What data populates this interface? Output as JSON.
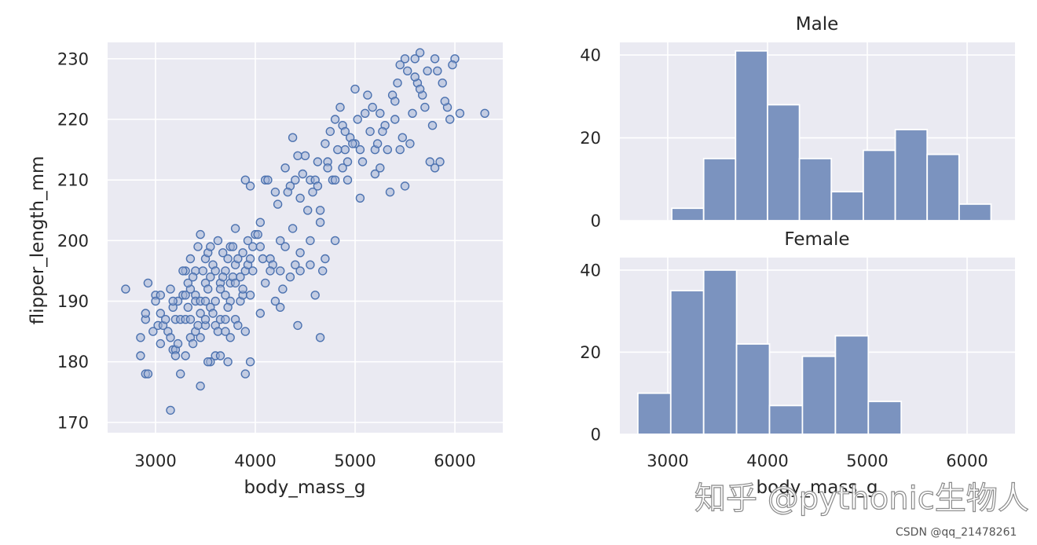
{
  "colors": {
    "panel_bg": "#eaeaf2",
    "grid": "#ffffff",
    "point_fill": "#a3b3d6",
    "point_edge": "#4c72b0",
    "bar_fill": "#7b93bf",
    "bar_edge": "#ffffff",
    "text": "#262626"
  },
  "watermark": {
    "main": "知乎 @pythonic生物人",
    "sub": "CSDN @qq_21478261"
  },
  "chart_data": [
    {
      "type": "scatter",
      "title": "",
      "xlabel": "body_mass_g",
      "ylabel": "flipper_length_mm",
      "xlim": [
        2520,
        6480
      ],
      "ylim": [
        168.3,
        232.7
      ],
      "xticks": [
        3000,
        4000,
        5000,
        6000
      ],
      "yticks": [
        170,
        180,
        190,
        200,
        210,
        220,
        230
      ],
      "grid": true,
      "points": [
        [
          2700,
          192
        ],
        [
          2850,
          184
        ],
        [
          2850,
          181
        ],
        [
          2900,
          187
        ],
        [
          2900,
          188
        ],
        [
          2900,
          178
        ],
        [
          2925,
          193
        ],
        [
          2975,
          185
        ],
        [
          3000,
          191
        ],
        [
          3000,
          190
        ],
        [
          3025,
          186
        ],
        [
          3050,
          188
        ],
        [
          3050,
          183
        ],
        [
          3075,
          186
        ],
        [
          3100,
          187
        ],
        [
          3125,
          185
        ],
        [
          3150,
          192
        ],
        [
          3150,
          172
        ],
        [
          3175,
          182
        ],
        [
          3175,
          189
        ],
        [
          3200,
          187
        ],
        [
          3200,
          182
        ],
        [
          3200,
          181
        ],
        [
          3225,
          190
        ],
        [
          3250,
          187
        ],
        [
          3250,
          178
        ],
        [
          3275,
          191
        ],
        [
          3300,
          191
        ],
        [
          3300,
          195
        ],
        [
          3300,
          187
        ],
        [
          3300,
          181
        ],
        [
          3325,
          189
        ],
        [
          3350,
          192
        ],
        [
          3350,
          187
        ],
        [
          3350,
          184
        ],
        [
          3400,
          191
        ],
        [
          3400,
          195
        ],
        [
          3400,
          185
        ],
        [
          3400,
          190
        ],
        [
          3425,
          186
        ],
        [
          3450,
          188
        ],
        [
          3450,
          190
        ],
        [
          3450,
          184
        ],
        [
          3450,
          176
        ],
        [
          3500,
          193
        ],
        [
          3500,
          197
        ],
        [
          3500,
          190
        ],
        [
          3500,
          186
        ],
        [
          3500,
          187
        ],
        [
          3525,
          198
        ],
        [
          3550,
          194
        ],
        [
          3550,
          189
        ],
        [
          3550,
          180
        ],
        [
          3575,
          196
        ],
        [
          3600,
          195
        ],
        [
          3600,
          190
        ],
        [
          3600,
          186
        ],
        [
          3600,
          181
        ],
        [
          3625,
          185
        ],
        [
          3650,
          193
        ],
        [
          3650,
          187
        ],
        [
          3650,
          181
        ],
        [
          3675,
          198
        ],
        [
          3700,
          195
        ],
        [
          3700,
          191
        ],
        [
          3700,
          187
        ],
        [
          3700,
          185
        ],
        [
          3725,
          197
        ],
        [
          3750,
          190
        ],
        [
          3750,
          193
        ],
        [
          3750,
          199
        ],
        [
          3775,
          194
        ],
        [
          3800,
          193
        ],
        [
          3800,
          196
        ],
        [
          3800,
          202
        ],
        [
          3800,
          187
        ],
        [
          3825,
          186
        ],
        [
          3850,
          190
        ],
        [
          3875,
          191
        ],
        [
          3900,
          195
        ],
        [
          3900,
          210
        ],
        [
          3900,
          185
        ],
        [
          3900,
          178
        ],
        [
          3925,
          200
        ],
        [
          3950,
          209
        ],
        [
          3950,
          191
        ],
        [
          3950,
          180
        ],
        [
          3975,
          199
        ],
        [
          4000,
          201
        ],
        [
          4050,
          203
        ],
        [
          4050,
          188
        ],
        [
          4075,
          197
        ],
        [
          4100,
          210
        ],
        [
          4150,
          197
        ],
        [
          4200,
          190
        ],
        [
          4200,
          208
        ],
        [
          4250,
          195
        ],
        [
          4250,
          189
        ],
        [
          4275,
          192
        ],
        [
          4300,
          212
        ],
        [
          4300,
          199
        ],
        [
          4350,
          209
        ],
        [
          4375,
          217
        ],
        [
          4400,
          210
        ],
        [
          4400,
          196
        ],
        [
          4450,
          195
        ],
        [
          4450,
          207
        ],
        [
          4500,
          214
        ],
        [
          4550,
          210
        ],
        [
          4600,
          191
        ],
        [
          4600,
          210
        ],
        [
          4625,
          213
        ],
        [
          4650,
          203
        ],
        [
          4675,
          195
        ],
        [
          4700,
          216
        ],
        [
          4725,
          213
        ],
        [
          4750,
          218
        ],
        [
          4775,
          210
        ],
        [
          4800,
          220
        ],
        [
          4850,
          222
        ],
        [
          4875,
          219
        ],
        [
          4900,
          215
        ],
        [
          4925,
          213
        ],
        [
          4950,
          217
        ],
        [
          5000,
          216
        ],
        [
          5050,
          207
        ],
        [
          5100,
          221
        ],
        [
          5150,
          218
        ],
        [
          5200,
          215
        ],
        [
          5250,
          221
        ],
        [
          5300,
          219
        ],
        [
          5350,
          208
        ],
        [
          5400,
          220
        ],
        [
          5450,
          215
        ],
        [
          5500,
          230
        ],
        [
          5500,
          209
        ],
        [
          5550,
          216
        ],
        [
          5600,
          230
        ],
        [
          5650,
          231
        ],
        [
          5700,
          222
        ],
        [
          5750,
          213
        ],
        [
          5800,
          230
        ],
        [
          5850,
          213
        ],
        [
          5950,
          220
        ],
        [
          6000,
          230
        ],
        [
          6300,
          221
        ],
        [
          2925,
          178
        ],
        [
          3050,
          191
        ],
        [
          3175,
          190
        ],
        [
          3275,
          195
        ],
        [
          3325,
          193
        ],
        [
          3375,
          194
        ],
        [
          3425,
          199
        ],
        [
          3475,
          195
        ],
        [
          3525,
          192
        ],
        [
          3575,
          188
        ],
        [
          3625,
          200
        ],
        [
          3675,
          194
        ],
        [
          3725,
          189
        ],
        [
          3775,
          199
        ],
        [
          3825,
          197
        ],
        [
          3875,
          198
        ],
        [
          3925,
          196
        ],
        [
          3975,
          195
        ],
        [
          4025,
          201
        ],
        [
          4125,
          210
        ],
        [
          4175,
          196
        ],
        [
          4225,
          206
        ],
        [
          4325,
          208
        ],
        [
          4425,
          214
        ],
        [
          4475,
          211
        ],
        [
          4525,
          205
        ],
        [
          4575,
          208
        ],
        [
          4625,
          209
        ],
        [
          4725,
          212
        ],
        [
          4825,
          215
        ],
        [
          4875,
          212
        ],
        [
          4925,
          210
        ],
        [
          4975,
          216
        ],
        [
          5025,
          220
        ],
        [
          5075,
          213
        ],
        [
          5125,
          224
        ],
        [
          5175,
          222
        ],
        [
          5225,
          216
        ],
        [
          5275,
          218
        ],
        [
          5325,
          215
        ],
        [
          5375,
          224
        ],
        [
          5425,
          226
        ],
        [
          5475,
          217
        ],
        [
          5525,
          228
        ],
        [
          5575,
          221
        ],
        [
          5625,
          226
        ],
        [
          5675,
          224
        ],
        [
          5725,
          228
        ],
        [
          5775,
          219
        ],
        [
          5825,
          228
        ],
        [
          5875,
          226
        ],
        [
          5925,
          222
        ],
        [
          5975,
          229
        ],
        [
          3150,
          184
        ],
        [
          3225,
          183
        ],
        [
          3375,
          183
        ],
        [
          3525,
          180
        ],
        [
          3725,
          180
        ],
        [
          3875,
          192
        ],
        [
          4100,
          193
        ],
        [
          4250,
          200
        ],
        [
          4350,
          194
        ],
        [
          4450,
          198
        ],
        [
          4550,
          196
        ],
        [
          4650,
          184
        ],
        [
          4700,
          197
        ],
        [
          4800,
          200
        ],
        [
          5000,
          225
        ],
        [
          5200,
          211
        ],
        [
          5400,
          223
        ],
        [
          5600,
          227
        ],
        [
          5800,
          212
        ],
        [
          6050,
          221
        ],
        [
          3350,
          197
        ],
        [
          3450,
          201
        ],
        [
          3550,
          199
        ],
        [
          3650,
          192
        ],
        [
          3750,
          184
        ],
        [
          3850,
          194
        ],
        [
          3950,
          197
        ],
        [
          4050,
          199
        ],
        [
          4150,
          195
        ],
        [
          4375,
          202
        ],
        [
          4425,
          186
        ],
        [
          4550,
          200
        ],
        [
          4650,
          205
        ],
        [
          4800,
          210
        ],
        [
          4900,
          218
        ],
        [
          5050,
          215
        ],
        [
          5250,
          212
        ],
        [
          5450,
          229
        ],
        [
          5650,
          225
        ],
        [
          5900,
          223
        ]
      ]
    },
    {
      "type": "bar",
      "title": "Male",
      "xlabel": "",
      "ylabel": "",
      "xlim": [
        2520,
        6480
      ],
      "ylim": [
        0,
        43.05
      ],
      "yticks": [
        0,
        20,
        40
      ],
      "xticks": [],
      "grid": true,
      "bins": [
        {
          "x0": 3040,
          "x1": 3360,
          "value": 3
        },
        {
          "x0": 3360,
          "x1": 3680,
          "value": 15
        },
        {
          "x0": 3680,
          "x1": 4000,
          "value": 41
        },
        {
          "x0": 4000,
          "x1": 4320,
          "value": 28
        },
        {
          "x0": 4320,
          "x1": 4640,
          "value": 15
        },
        {
          "x0": 4640,
          "x1": 4960,
          "value": 7
        },
        {
          "x0": 4960,
          "x1": 5280,
          "value": 17
        },
        {
          "x0": 5280,
          "x1": 5600,
          "value": 22
        },
        {
          "x0": 5600,
          "x1": 5920,
          "value": 16
        },
        {
          "x0": 5920,
          "x1": 6240,
          "value": 4
        }
      ]
    },
    {
      "type": "bar",
      "title": "Female",
      "xlabel": "body_mass_g",
      "ylabel": "",
      "xlim": [
        2520,
        6480
      ],
      "ylim": [
        0,
        43.05
      ],
      "yticks": [
        0,
        20,
        40
      ],
      "xticks": [
        3000,
        4000,
        5000,
        6000
      ],
      "grid": true,
      "bins": [
        {
          "x0": 2700,
          "x1": 3030,
          "value": 10
        },
        {
          "x0": 3030,
          "x1": 3360,
          "value": 35
        },
        {
          "x0": 3360,
          "x1": 3690,
          "value": 40
        },
        {
          "x0": 3690,
          "x1": 4020,
          "value": 22
        },
        {
          "x0": 4020,
          "x1": 4350,
          "value": 7
        },
        {
          "x0": 4350,
          "x1": 4680,
          "value": 19
        },
        {
          "x0": 4680,
          "x1": 5010,
          "value": 24
        },
        {
          "x0": 5010,
          "x1": 5340,
          "value": 8
        }
      ]
    }
  ]
}
